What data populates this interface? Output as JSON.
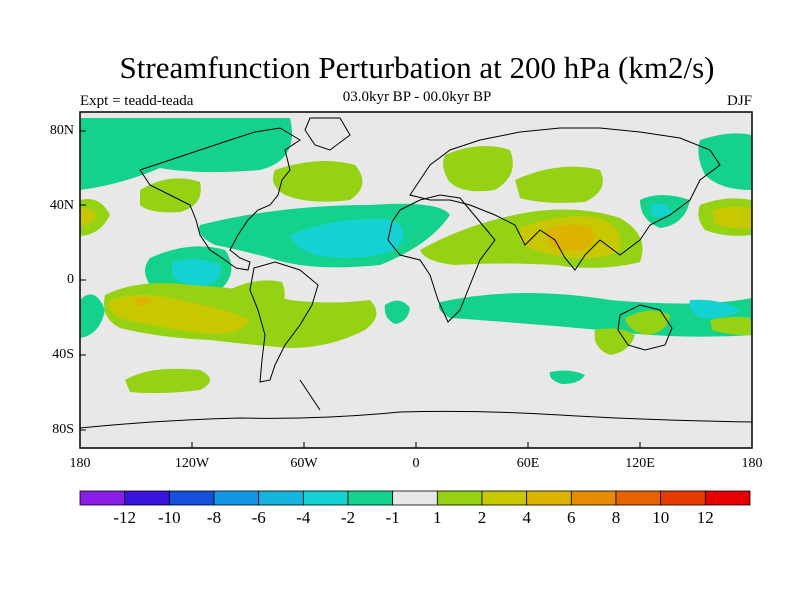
{
  "title": "Streamfunction Perturbation at 200 hPa (km2/s)",
  "expt_label": "Expt = teadd-teada",
  "period_label": "03.0kyr BP - 00.0kyr BP",
  "season_label": "DJF",
  "map": {
    "ocean_color": "#e8e8e8",
    "lat_labels": [
      "80N",
      "40N",
      "0",
      "40S",
      "80S"
    ],
    "lon_labels": [
      "180",
      "120W",
      "60W",
      "0",
      "60E",
      "120E",
      "180"
    ]
  },
  "colorbar": {
    "colors": [
      "#8a1ee6",
      "#3a14dc",
      "#1450dc",
      "#1496e6",
      "#14b4dc",
      "#14d2d2",
      "#14d28c",
      "#e8e8e8",
      "#96d214",
      "#c8c800",
      "#dcb400",
      "#e68c00",
      "#e66400",
      "#e63c00",
      "#e60000"
    ],
    "labels": [
      "-12",
      "-10",
      "-8",
      "-6",
      "-4",
      "-2",
      "-1",
      "1",
      "2",
      "4",
      "6",
      "8",
      "10",
      "12"
    ]
  }
}
